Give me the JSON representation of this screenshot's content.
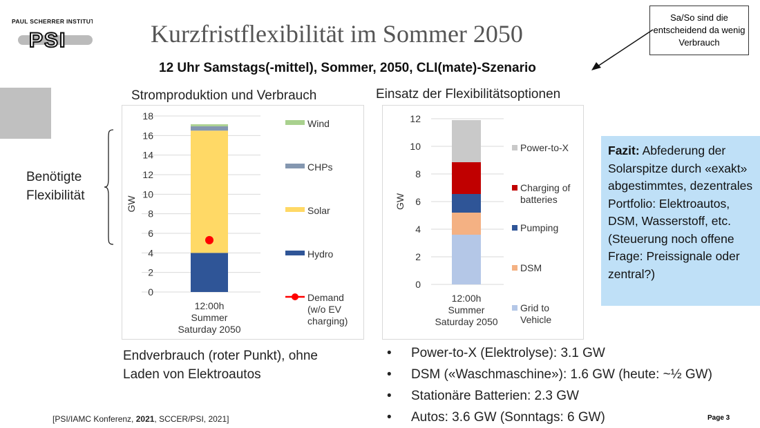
{
  "logo": {
    "text": "PAUL SCHERRER INSTITUT",
    "mark": "PSI"
  },
  "title": "Kurzfristflexibilität im Sommer 2050",
  "subtitle": "12 Uhr Samstags(-mittel), Sommer, 2050, CLI(mate)-Szenario",
  "note": "Sa/So sind die entscheidend da wenig Verbrauch",
  "flex_label": [
    "Benötigte",
    "Flexibilität"
  ],
  "fazit": {
    "bold": "Fazit:",
    "text": " Abfederung der Solarspitze durch «exakt» abgestimmtes, dezentrales Portfolio: Elektroautos, DSM, Wasserstoff, etc. (Steuerung noch offene Frage: Preissignale oder zentral?)"
  },
  "endverbrauch": [
    "Endverbrauch (roter Punkt), ohne",
    "Laden von Elektroautos"
  ],
  "bullets": [
    "Power-to-X (Elektrolyse): 3.1 GW",
    "DSM («Waschmaschine»): 1.6 GW (heute: ~½ GW)",
    "Stationäre Batterien: 2.3 GW",
    "Autos: 3.6 GW (Sonntags: 6 GW)"
  ],
  "citation": {
    "pre": "[PSI/IAMC Konferenz, ",
    "bold": "2021",
    "post": ", SCCER/PSI, 2021]"
  },
  "page": "Page 3",
  "chart_data": [
    {
      "type": "bar",
      "stacked": true,
      "title": "Stromproduktion und Verbrauch",
      "ylabel": "GW",
      "ylim": [
        0,
        18
      ],
      "yticks": [
        0,
        2,
        4,
        6,
        8,
        10,
        12,
        14,
        16,
        18
      ],
      "grid": true,
      "legend": "right",
      "categories": [
        "12:00h Summer Saturday 2050"
      ],
      "series": [
        {
          "name": "Hydro",
          "values": [
            4.0
          ],
          "color": "#2f5597"
        },
        {
          "name": "Solar",
          "values": [
            12.5
          ],
          "color": "#ffd966"
        },
        {
          "name": "CHPs",
          "values": [
            0.45
          ],
          "color": "#8497b0"
        },
        {
          "name": "Wind",
          "values": [
            0.2
          ],
          "color": "#a9d18e"
        }
      ],
      "legend_order": [
        "Wind",
        "CHPs",
        "Solar",
        "Hydro",
        "Demand (w/o EV charging)"
      ],
      "markers": [
        {
          "name": "Demand (w/o EV charging)",
          "values": [
            5.3
          ],
          "color": "#ff0000"
        }
      ]
    },
    {
      "type": "bar",
      "stacked": true,
      "title": "Einsatz der Flexibilitätsoptionen",
      "ylabel": "GW",
      "ylim": [
        0,
        12
      ],
      "yticks": [
        0,
        2,
        4,
        6,
        8,
        10,
        12
      ],
      "grid": true,
      "legend": "right",
      "categories": [
        "12:00h Summer Saturday 2050"
      ],
      "series": [
        {
          "name": "Grid to Vehicle",
          "values": [
            3.6
          ],
          "color": "#b4c7e7"
        },
        {
          "name": "DSM",
          "values": [
            1.6
          ],
          "color": "#f4b183"
        },
        {
          "name": "Pumping",
          "values": [
            1.35
          ],
          "color": "#2f5597"
        },
        {
          "name": "Charging of batteries",
          "values": [
            2.3
          ],
          "color": "#c00000"
        },
        {
          "name": "Power-to-X",
          "values": [
            3.05
          ],
          "color": "#c9c9c9"
        }
      ]
    }
  ]
}
